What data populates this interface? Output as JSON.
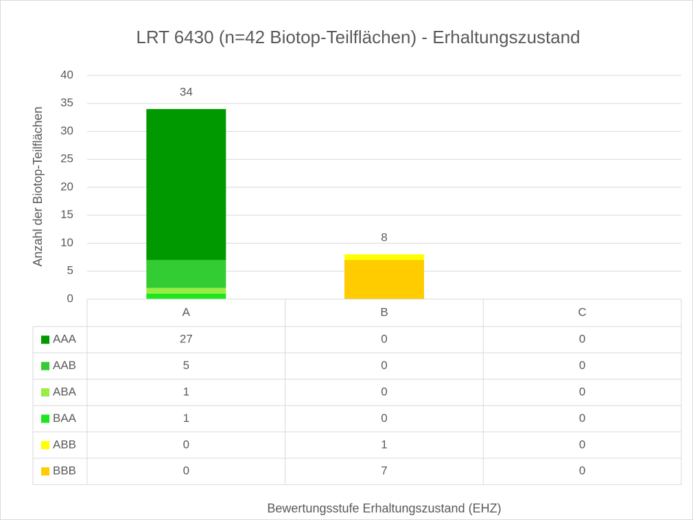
{
  "chart_data": {
    "type": "bar",
    "stacked": true,
    "title": "LRT 6430 (n=42 Biotop-Teilflächen) - Erhaltungszustand",
    "x_label": "Bewertungsstufe Erhaltungszustand (EHZ)",
    "y_label": "Anzahl der Biotop-Teilflächen",
    "categories": [
      "A",
      "B",
      "C"
    ],
    "series": [
      {
        "name": "AAA",
        "color": "#009a00",
        "values": [
          27,
          0,
          0
        ]
      },
      {
        "name": "AAB",
        "color": "#33cc33",
        "values": [
          5,
          0,
          0
        ]
      },
      {
        "name": "ABA",
        "color": "#99ee44",
        "values": [
          1,
          0,
          0
        ]
      },
      {
        "name": "BAA",
        "color": "#1ee61e",
        "values": [
          1,
          0,
          0
        ]
      },
      {
        "name": "ABB",
        "color": "#ffff00",
        "values": [
          0,
          1,
          0
        ]
      },
      {
        "name": "BBB",
        "color": "#ffcc00",
        "values": [
          0,
          7,
          0
        ]
      }
    ],
    "totals": [
      34,
      8,
      null
    ],
    "ylim": [
      0,
      40
    ],
    "yticks": [
      0,
      5,
      10,
      15,
      20,
      25,
      30,
      35,
      40
    ],
    "grid": true,
    "data_table": true
  }
}
